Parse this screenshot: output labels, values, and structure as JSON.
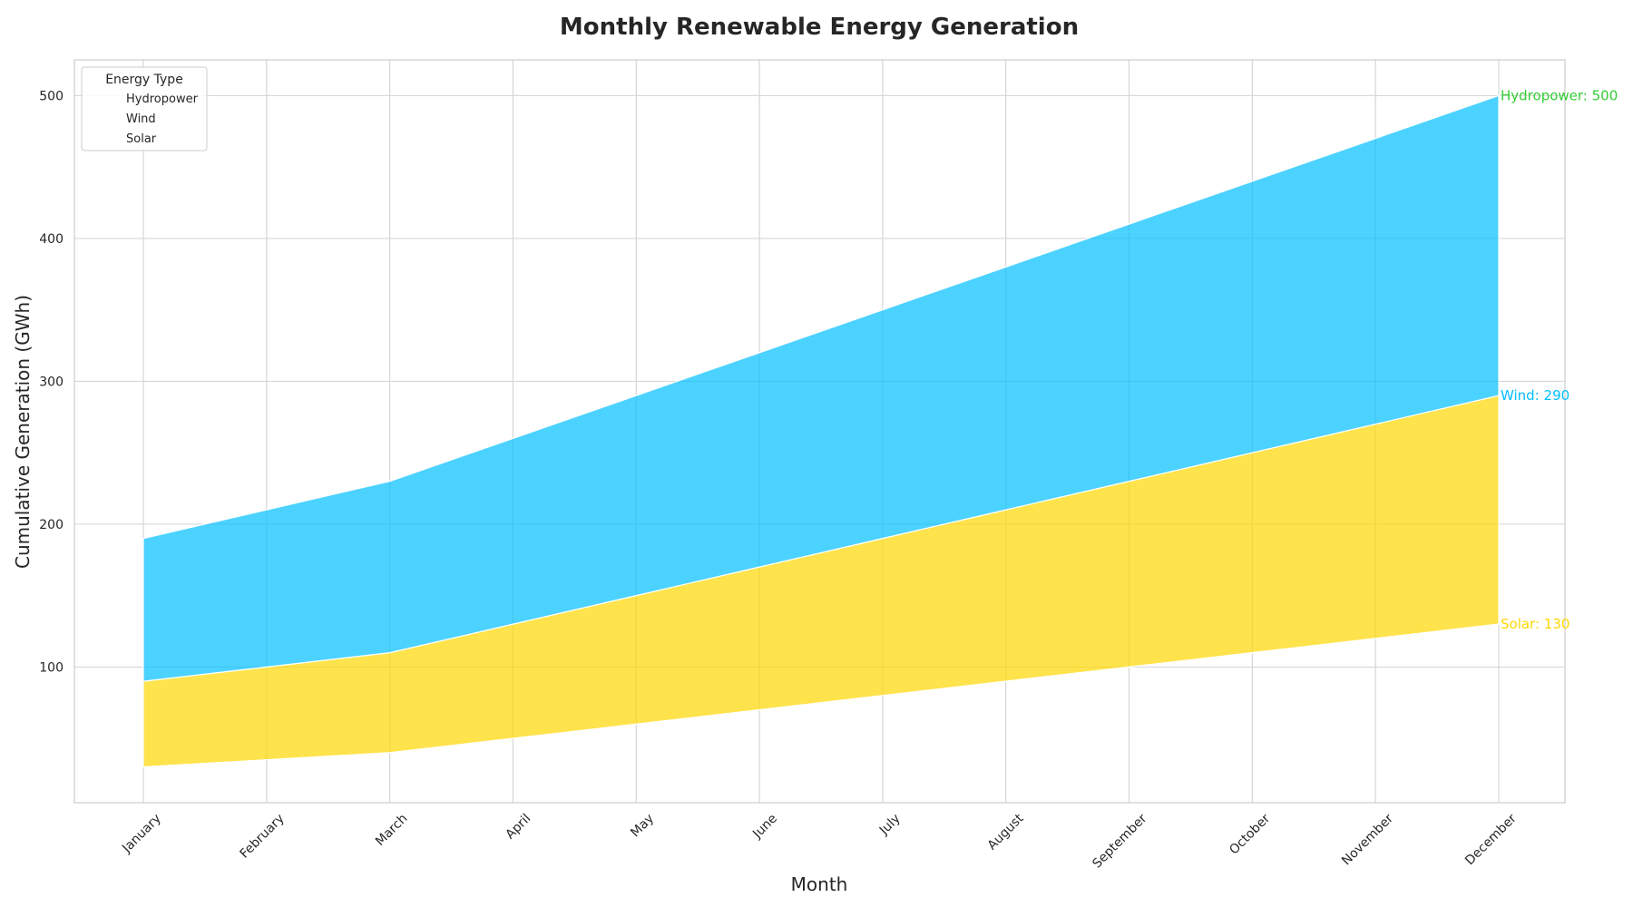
{
  "chart_data": {
    "type": "area",
    "stacked": true,
    "title": "Monthly Renewable Energy Generation",
    "xlabel": "Month",
    "ylabel": "Cumulative Generation (GWh)",
    "categories": [
      "January",
      "February",
      "March",
      "April",
      "May",
      "June",
      "July",
      "August",
      "September",
      "October",
      "November",
      "December"
    ],
    "yticks": [
      100,
      200,
      300,
      400,
      500
    ],
    "ylim": [
      5,
      525
    ],
    "grid": true,
    "legend": {
      "title": "Energy Type",
      "placement": "top-left",
      "entries": [
        "Hydropower",
        "Wind",
        "Solar"
      ]
    },
    "series": [
      {
        "name": "Solar",
        "color": "#FFD700",
        "values": [
          30,
          35,
          40,
          50,
          60,
          70,
          80,
          90,
          100,
          110,
          120,
          130
        ]
      },
      {
        "name": "Wind",
        "color": "#00BFFF",
        "values": [
          60,
          65,
          70,
          80,
          90,
          100,
          110,
          120,
          130,
          140,
          150,
          160
        ]
      },
      {
        "name": "Hydropower",
        "color": "#32CD32",
        "values": [
          100,
          110,
          120,
          130,
          140,
          150,
          160,
          170,
          180,
          190,
          200,
          210
        ]
      }
    ],
    "end_labels": [
      {
        "text": "Hydropower: 500",
        "value": 500,
        "color": "#32CD32"
      },
      {
        "text": "Wind: 290",
        "value": 290,
        "color": "#00BFFF"
      },
      {
        "text": "Solar: 130",
        "value": 130,
        "color": "#FFD700"
      }
    ]
  }
}
